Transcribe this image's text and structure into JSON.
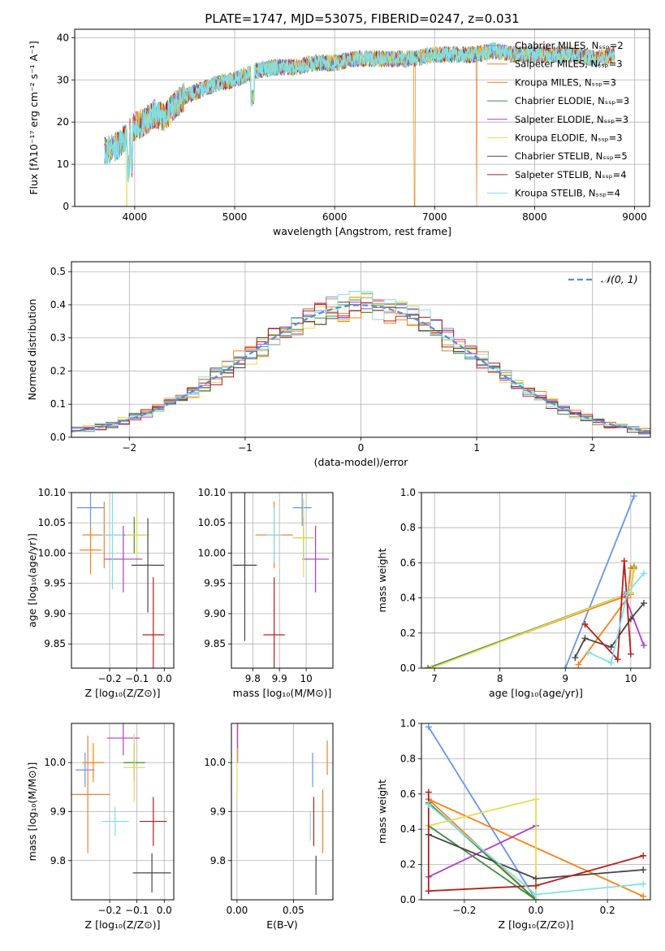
{
  "colors": [
    "#6495ed",
    "#f08030",
    "#ff7f0e",
    "#3c8c3c",
    "#b03cc8",
    "#e6dc50",
    "#464646",
    "#b41e1e",
    "#7ee0e6"
  ],
  "chart_data": [
    {
      "id": "spectrum",
      "type": "line",
      "title": "PLATE=1747, MJD=53075, FIBERID=0247, z=0.031",
      "xlabel": "wavelength [Angstrom, rest frame]",
      "ylabel": "Flux [fλ10⁻¹⁷ erg cm⁻² s⁻¹ A⁻¹]",
      "xlim": [
        3400,
        9150
      ],
      "ylim": [
        0,
        42
      ],
      "xticks": [
        4000,
        5000,
        6000,
        7000,
        8000,
        9000
      ],
      "yticks": [
        0,
        10,
        20,
        30,
        40
      ],
      "legend_position": "right",
      "legend": [
        {
          "name": "Chabrier MILES, Nₛₛₚ=2",
          "color_index": 0
        },
        {
          "name": "Salpeter MILES, Nₛₛₚ=3",
          "color_index": 1
        },
        {
          "name": "Kroupa MILES, Nₛₛₚ=3",
          "color_index": 2
        },
        {
          "name": "Chabrier ELODIE, Nₛₛₚ=3",
          "color_index": 3
        },
        {
          "name": "Salpeter ELODIE, Nₛₛₚ=3",
          "color_index": 4
        },
        {
          "name": "Kroupa ELODIE, Nₛₛₚ=3",
          "color_index": 5
        },
        {
          "name": "Chabrier STELIB, Nₛₛₚ=5",
          "color_index": 6
        },
        {
          "name": "Salpeter STELIB, Nₛₛₚ=4",
          "color_index": 7
        },
        {
          "name": "Kroupa STELIB, Nₛₛₚ=4",
          "color_index": 8
        }
      ],
      "continuum": {
        "x": [
          3700,
          3800,
          3900,
          4000,
          4100,
          4200,
          4300,
          4400,
          4500,
          4600,
          4800,
          5000,
          5200,
          5400,
          5600,
          5800,
          6000,
          6200,
          6400,
          6600,
          6800,
          7000,
          7200,
          7400,
          7600,
          7800,
          8000,
          8200,
          8400,
          8600,
          8800
        ],
        "y": [
          13,
          14,
          16,
          19,
          20,
          22,
          21,
          24,
          26,
          27,
          29,
          30,
          32,
          33,
          33,
          34,
          34,
          35,
          35,
          35,
          35,
          36,
          36,
          36,
          37,
          36,
          36,
          36,
          36,
          35,
          36
        ]
      },
      "drops": [
        {
          "x": 3920,
          "series": [
            "Kroupa ELODIE"
          ]
        },
        {
          "x": 6800,
          "series": [
            "Kroupa MILES",
            "Kroupa ELODIE"
          ]
        },
        {
          "x": 7420,
          "series": [
            "Salpeter MILES"
          ]
        }
      ]
    },
    {
      "id": "residuals",
      "type": "line",
      "xlabel": "(data-model)/error",
      "ylabel": "Normed distribution",
      "xlim": [
        -2.5,
        2.5
      ],
      "ylim": [
        0,
        0.53
      ],
      "xticks": [
        -2,
        -1,
        0,
        1,
        2
      ],
      "yticks": [
        0.0,
        0.1,
        0.2,
        0.3,
        0.4,
        0.5
      ],
      "legend_position": "top-right",
      "legend": [
        {
          "name": "𝒩(0, 1)",
          "style": "dashed",
          "color": "#5a8ad6"
        }
      ],
      "bin_width": 0.1,
      "series_source": "gaussian-histograms-9"
    },
    {
      "id": "age_vs_Z",
      "type": "scatter",
      "xlabel": "Z [log₁₀(Z/Z⊙)]",
      "ylabel": "age  [log₁₀(age/yr)]",
      "xlim": [
        -0.34,
        0.035
      ],
      "ylim": [
        9.81,
        10.1
      ],
      "xticks": [
        -0.2,
        -0.1,
        0.0
      ],
      "xticklabels": [
        "−0.2",
        "−0.1",
        "0.0"
      ],
      "yticks": [
        9.85,
        9.9,
        9.95,
        10.0,
        10.05,
        10.1
      ],
      "points": [
        {
          "x": -0.27,
          "y": 10.075,
          "xerr": 0.05,
          "yerr": 0.03,
          "color_index": 0
        },
        {
          "x": -0.22,
          "y": 10.03,
          "xerr": 0.08,
          "yerr": 0.055,
          "color_index": 1
        },
        {
          "x": -0.27,
          "y": 10.005,
          "xerr": 0.04,
          "yerr": 0.04,
          "color_index": 2
        },
        {
          "x": -0.11,
          "y": 10.03,
          "xerr": 0.04,
          "yerr": 0.03,
          "color_index": 3
        },
        {
          "x": -0.15,
          "y": 9.99,
          "xerr": 0.07,
          "yerr": 0.055,
          "color_index": 4
        },
        {
          "x": -0.1,
          "y": 10.03,
          "xerr": 0.045,
          "yerr": 0.035,
          "color_index": 5
        },
        {
          "x": -0.06,
          "y": 9.98,
          "xerr": 0.06,
          "yerr": 0.078,
          "color_index": 6
        },
        {
          "x": -0.04,
          "y": 9.865,
          "xerr": 0.04,
          "yerr": 0.095,
          "color_index": 7
        },
        {
          "x": -0.19,
          "y": 10.03,
          "xerr": 0.04,
          "yerr": 0.09,
          "color_index": 8
        }
      ]
    },
    {
      "id": "age_vs_mass",
      "type": "scatter",
      "xlabel": "mass [log₁₀(M/M⊙)]",
      "ylabel": "",
      "xlim": [
        9.72,
        10.1
      ],
      "ylim": [
        9.81,
        10.1
      ],
      "xticks": [
        9.8,
        9.9,
        10.0
      ],
      "yticks": [
        9.85,
        9.9,
        9.95,
        10.0,
        10.05,
        10.1
      ],
      "points": [
        {
          "x": 9.985,
          "y": 10.075,
          "xerr": 0.035,
          "yerr": 0.03,
          "color_index": 0
        },
        {
          "x": 9.88,
          "y": 10.03,
          "xerr": 0.07,
          "yerr": 0.055,
          "color_index": 1
        },
        {
          "x": 9.99,
          "y": 10.025,
          "xerr": 0.04,
          "yerr": 0.035,
          "color_index": 3
        },
        {
          "x": 10.035,
          "y": 9.99,
          "xerr": 0.05,
          "yerr": 0.055,
          "color_index": 4
        },
        {
          "x": 9.99,
          "y": 10.025,
          "xerr": 0.04,
          "yerr": 0.065,
          "color_index": 5
        },
        {
          "x": 9.77,
          "y": 9.98,
          "xerr": 0.045,
          "yerr": 0.125,
          "color_index": 6
        },
        {
          "x": 9.88,
          "y": 9.865,
          "xerr": 0.04,
          "yerr": 0.095,
          "color_index": 7
        },
        {
          "x": 9.88,
          "y": 10.03,
          "xerr": 0.03,
          "yerr": 0.045,
          "color_index": 8
        }
      ]
    },
    {
      "id": "weight_vs_age",
      "type": "line",
      "xlabel": "age  [log₁₀(age/yr)]",
      "ylabel": "mass weight",
      "xlim": [
        6.8,
        10.3
      ],
      "ylim": [
        0,
        1
      ],
      "xticks": [
        7,
        8,
        9,
        10
      ],
      "yticks": [
        0.0,
        0.2,
        0.4,
        0.6,
        0.8,
        1.0
      ],
      "series": [
        {
          "color_index": 0,
          "x": [
            9.0,
            10.05
          ],
          "y": [
            0.0,
            0.98
          ]
        },
        {
          "color_index": 1,
          "x": [
            6.9,
            10.0,
            10.05
          ],
          "y": [
            0.0,
            0.42,
            0.58
          ]
        },
        {
          "color_index": 2,
          "x": [
            9.2,
            9.95,
            10.0
          ],
          "y": [
            0.02,
            0.4,
            0.57
          ]
        },
        {
          "color_index": 3,
          "x": [
            6.9,
            10.0,
            10.05
          ],
          "y": [
            0.0,
            0.43,
            0.57
          ]
        },
        {
          "color_index": 4,
          "x": [
            9.9,
            10.2
          ],
          "y": [
            0.42,
            0.13
          ]
        },
        {
          "color_index": 5,
          "x": [
            6.95,
            10.0,
            10.05
          ],
          "y": [
            0.0,
            0.43,
            0.56
          ]
        },
        {
          "color_index": 6,
          "x": [
            9.15,
            9.3,
            9.7,
            10.0,
            10.2
          ],
          "y": [
            0.06,
            0.17,
            0.12,
            0.28,
            0.37
          ]
        },
        {
          "color_index": 7,
          "x": [
            9.3,
            9.8,
            9.9,
            10.0
          ],
          "y": [
            0.25,
            0.05,
            0.61,
            0.08
          ]
        },
        {
          "color_index": 8,
          "x": [
            9.35,
            9.7,
            9.95,
            10.2
          ],
          "y": [
            0.09,
            0.03,
            0.43,
            0.54
          ]
        }
      ]
    },
    {
      "id": "mass_vs_Z",
      "type": "scatter",
      "xlabel": "Z [log₁₀(Z/Z⊙)]",
      "ylabel": "mass [log₁₀(M/M⊙)]",
      "xlim": [
        -0.34,
        0.035
      ],
      "ylim": [
        9.72,
        10.08
      ],
      "xticks": [
        -0.2,
        -0.1,
        0.0
      ],
      "xticklabels": [
        "−0.2",
        "−0.1",
        "0.0"
      ],
      "yticks": [
        9.8,
        9.9,
        10.0
      ],
      "points": [
        {
          "x": -0.29,
          "y": 9.985,
          "xerr": 0.035,
          "yerr": 0.035,
          "color_index": 0
        },
        {
          "x": -0.28,
          "y": 9.935,
          "xerr": 0.08,
          "yerr": 0.12,
          "color_index": 1
        },
        {
          "x": -0.26,
          "y": 10.0,
          "xerr": 0.04,
          "yerr": 0.04,
          "color_index": 2
        },
        {
          "x": -0.11,
          "y": 10.0,
          "xerr": 0.04,
          "yerr": 0.04,
          "color_index": 3
        },
        {
          "x": -0.15,
          "y": 10.05,
          "xerr": 0.06,
          "yerr": 0.035,
          "color_index": 4
        },
        {
          "x": -0.11,
          "y": 9.99,
          "xerr": 0.04,
          "yerr": 0.07,
          "color_index": 5
        },
        {
          "x": -0.045,
          "y": 9.775,
          "xerr": 0.07,
          "yerr": 0.04,
          "color_index": 6
        },
        {
          "x": -0.04,
          "y": 9.88,
          "xerr": 0.05,
          "yerr": 0.05,
          "color_index": 7
        },
        {
          "x": -0.18,
          "y": 9.88,
          "xerr": 0.05,
          "yerr": 0.03,
          "color_index": 8
        }
      ]
    },
    {
      "id": "mass_vs_EBV",
      "type": "scatter",
      "xlabel": "E(B-V)",
      "ylabel": "",
      "xlim": [
        -0.005,
        0.085
      ],
      "ylim": [
        9.72,
        10.08
      ],
      "xticks": [
        0.0,
        0.05
      ],
      "xticklabels": [
        "0.00",
        "0.05"
      ],
      "yticks": [
        9.8,
        9.9,
        10.0
      ],
      "points": [
        {
          "x": 0.067,
          "y": 9.985,
          "xerr": 0,
          "yerr": 0.035,
          "color_index": 0
        },
        {
          "x": 0.076,
          "y": 9.88,
          "xerr": 0,
          "yerr": 0.065,
          "color_index": 1
        },
        {
          "x": 0.08,
          "y": 10.01,
          "xerr": 0,
          "yerr": 0.035,
          "color_index": 2
        },
        {
          "x": 0.0005,
          "y": 10.04,
          "xerr": 0,
          "yerr": 0.04,
          "color_index": 4
        },
        {
          "x": 0.0,
          "y": 9.98,
          "xerr": 0,
          "yerr": 0.05,
          "color_index": 5
        },
        {
          "x": 0.07,
          "y": 9.77,
          "xerr": 0,
          "yerr": 0.04,
          "color_index": 6
        },
        {
          "x": 0.068,
          "y": 9.88,
          "xerr": 0,
          "yerr": 0.05,
          "color_index": 7
        },
        {
          "x": 0.065,
          "y": 9.87,
          "xerr": 0,
          "yerr": 0.03,
          "color_index": 8
        }
      ]
    },
    {
      "id": "weight_vs_Z",
      "type": "line",
      "xlabel": "Z [log₁₀(Z/Z⊙)]",
      "ylabel": "mass weight",
      "xlim": [
        -0.32,
        0.32
      ],
      "ylim": [
        0,
        1
      ],
      "xticks": [
        -0.2,
        0.0,
        0.2
      ],
      "xticklabels": [
        "−0.2",
        "0.0",
        "0.2"
      ],
      "yticks": [
        0.0,
        0.2,
        0.4,
        0.6,
        0.8,
        1.0
      ],
      "series": [
        {
          "color_index": 0,
          "x": [
            -0.3,
            0.0
          ],
          "y": [
            0.98,
            0.0
          ]
        },
        {
          "color_index": 1,
          "x": [
            -0.3,
            0.0
          ],
          "y": [
            0.57,
            0.0
          ]
        },
        {
          "color_index": 2,
          "x": [
            -0.3,
            0.3
          ],
          "y": [
            0.57,
            0.02
          ]
        },
        {
          "color_index": 3,
          "x": [
            -0.3,
            0.0,
            -0.3
          ],
          "y": [
            0.55,
            0.0,
            0.42
          ]
        },
        {
          "color_index": 4,
          "x": [
            -0.3,
            0.0
          ],
          "y": [
            0.13,
            0.42
          ]
        },
        {
          "color_index": 5,
          "x": [
            -0.3,
            0.0,
            0.0
          ],
          "y": [
            0.42,
            0.57,
            0.0
          ]
        },
        {
          "color_index": 6,
          "x": [
            -0.3,
            0.0,
            0.3
          ],
          "y": [
            0.37,
            0.12,
            0.17
          ]
        },
        {
          "color_index": 7,
          "x": [
            -0.3,
            -0.3,
            0.0,
            0.3
          ],
          "y": [
            0.61,
            0.05,
            0.08,
            0.25
          ]
        },
        {
          "color_index": 8,
          "x": [
            -0.3,
            0.0,
            0.3
          ],
          "y": [
            0.54,
            0.03,
            0.09
          ]
        }
      ]
    }
  ]
}
